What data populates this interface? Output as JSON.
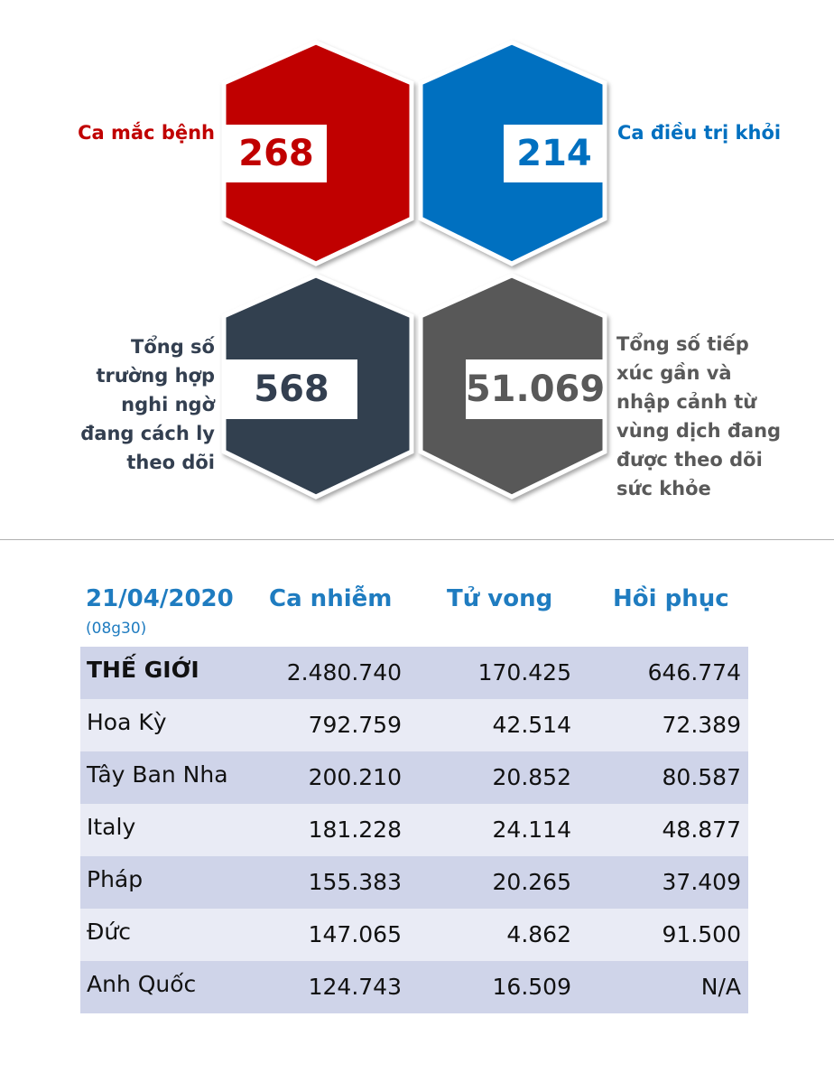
{
  "stats": {
    "cases": {
      "label": "Ca mắc bệnh",
      "value": "268",
      "color": "#c00000"
    },
    "recovered": {
      "label": "Ca điều trị khỏi",
      "value": "214",
      "color": "#0070c0"
    },
    "isolating": {
      "label_lines": [
        "Tổng số",
        "trường hợp",
        "nghi ngờ",
        "đang cách ly",
        "theo dõi"
      ],
      "value": "568",
      "color": "#333f50"
    },
    "monitored": {
      "label_lines": [
        "Tổng số tiếp",
        "xúc gần và",
        "nhập cảnh từ",
        "vùng dịch đang",
        "được theo dõi",
        "sức khỏe"
      ],
      "value": "51.069",
      "color": "#595959"
    }
  },
  "table": {
    "date": "21/04/2020",
    "time": "(08g30)",
    "headers": [
      "Ca nhiễm",
      "Tử vong",
      "Hồi phục"
    ],
    "rows": [
      {
        "country": "THẾ GIỚI",
        "cases": "2.480.740",
        "deaths": "170.425",
        "recovered": "646.774"
      },
      {
        "country": "Hoa Kỳ",
        "cases": "792.759",
        "deaths": "42.514",
        "recovered": "72.389"
      },
      {
        "country": "Tây Ban Nha",
        "cases": "200.210",
        "deaths": "20.852",
        "recovered": "80.587"
      },
      {
        "country": "Italy",
        "cases": "181.228",
        "deaths": "24.114",
        "recovered": "48.877"
      },
      {
        "country": "Pháp",
        "cases": "155.383",
        "deaths": "20.265",
        "recovered": "37.409"
      },
      {
        "country": "Đức",
        "cases": "147.065",
        "deaths": "4.862",
        "recovered": "91.500"
      },
      {
        "country": "Anh Quốc",
        "cases": "124.743",
        "deaths": "16.509",
        "recovered": "N/A"
      }
    ],
    "colors": {
      "header_text": "#1f7cc0",
      "row_dark": "#cfd4e9",
      "row_light": "#e9ebf5"
    }
  }
}
